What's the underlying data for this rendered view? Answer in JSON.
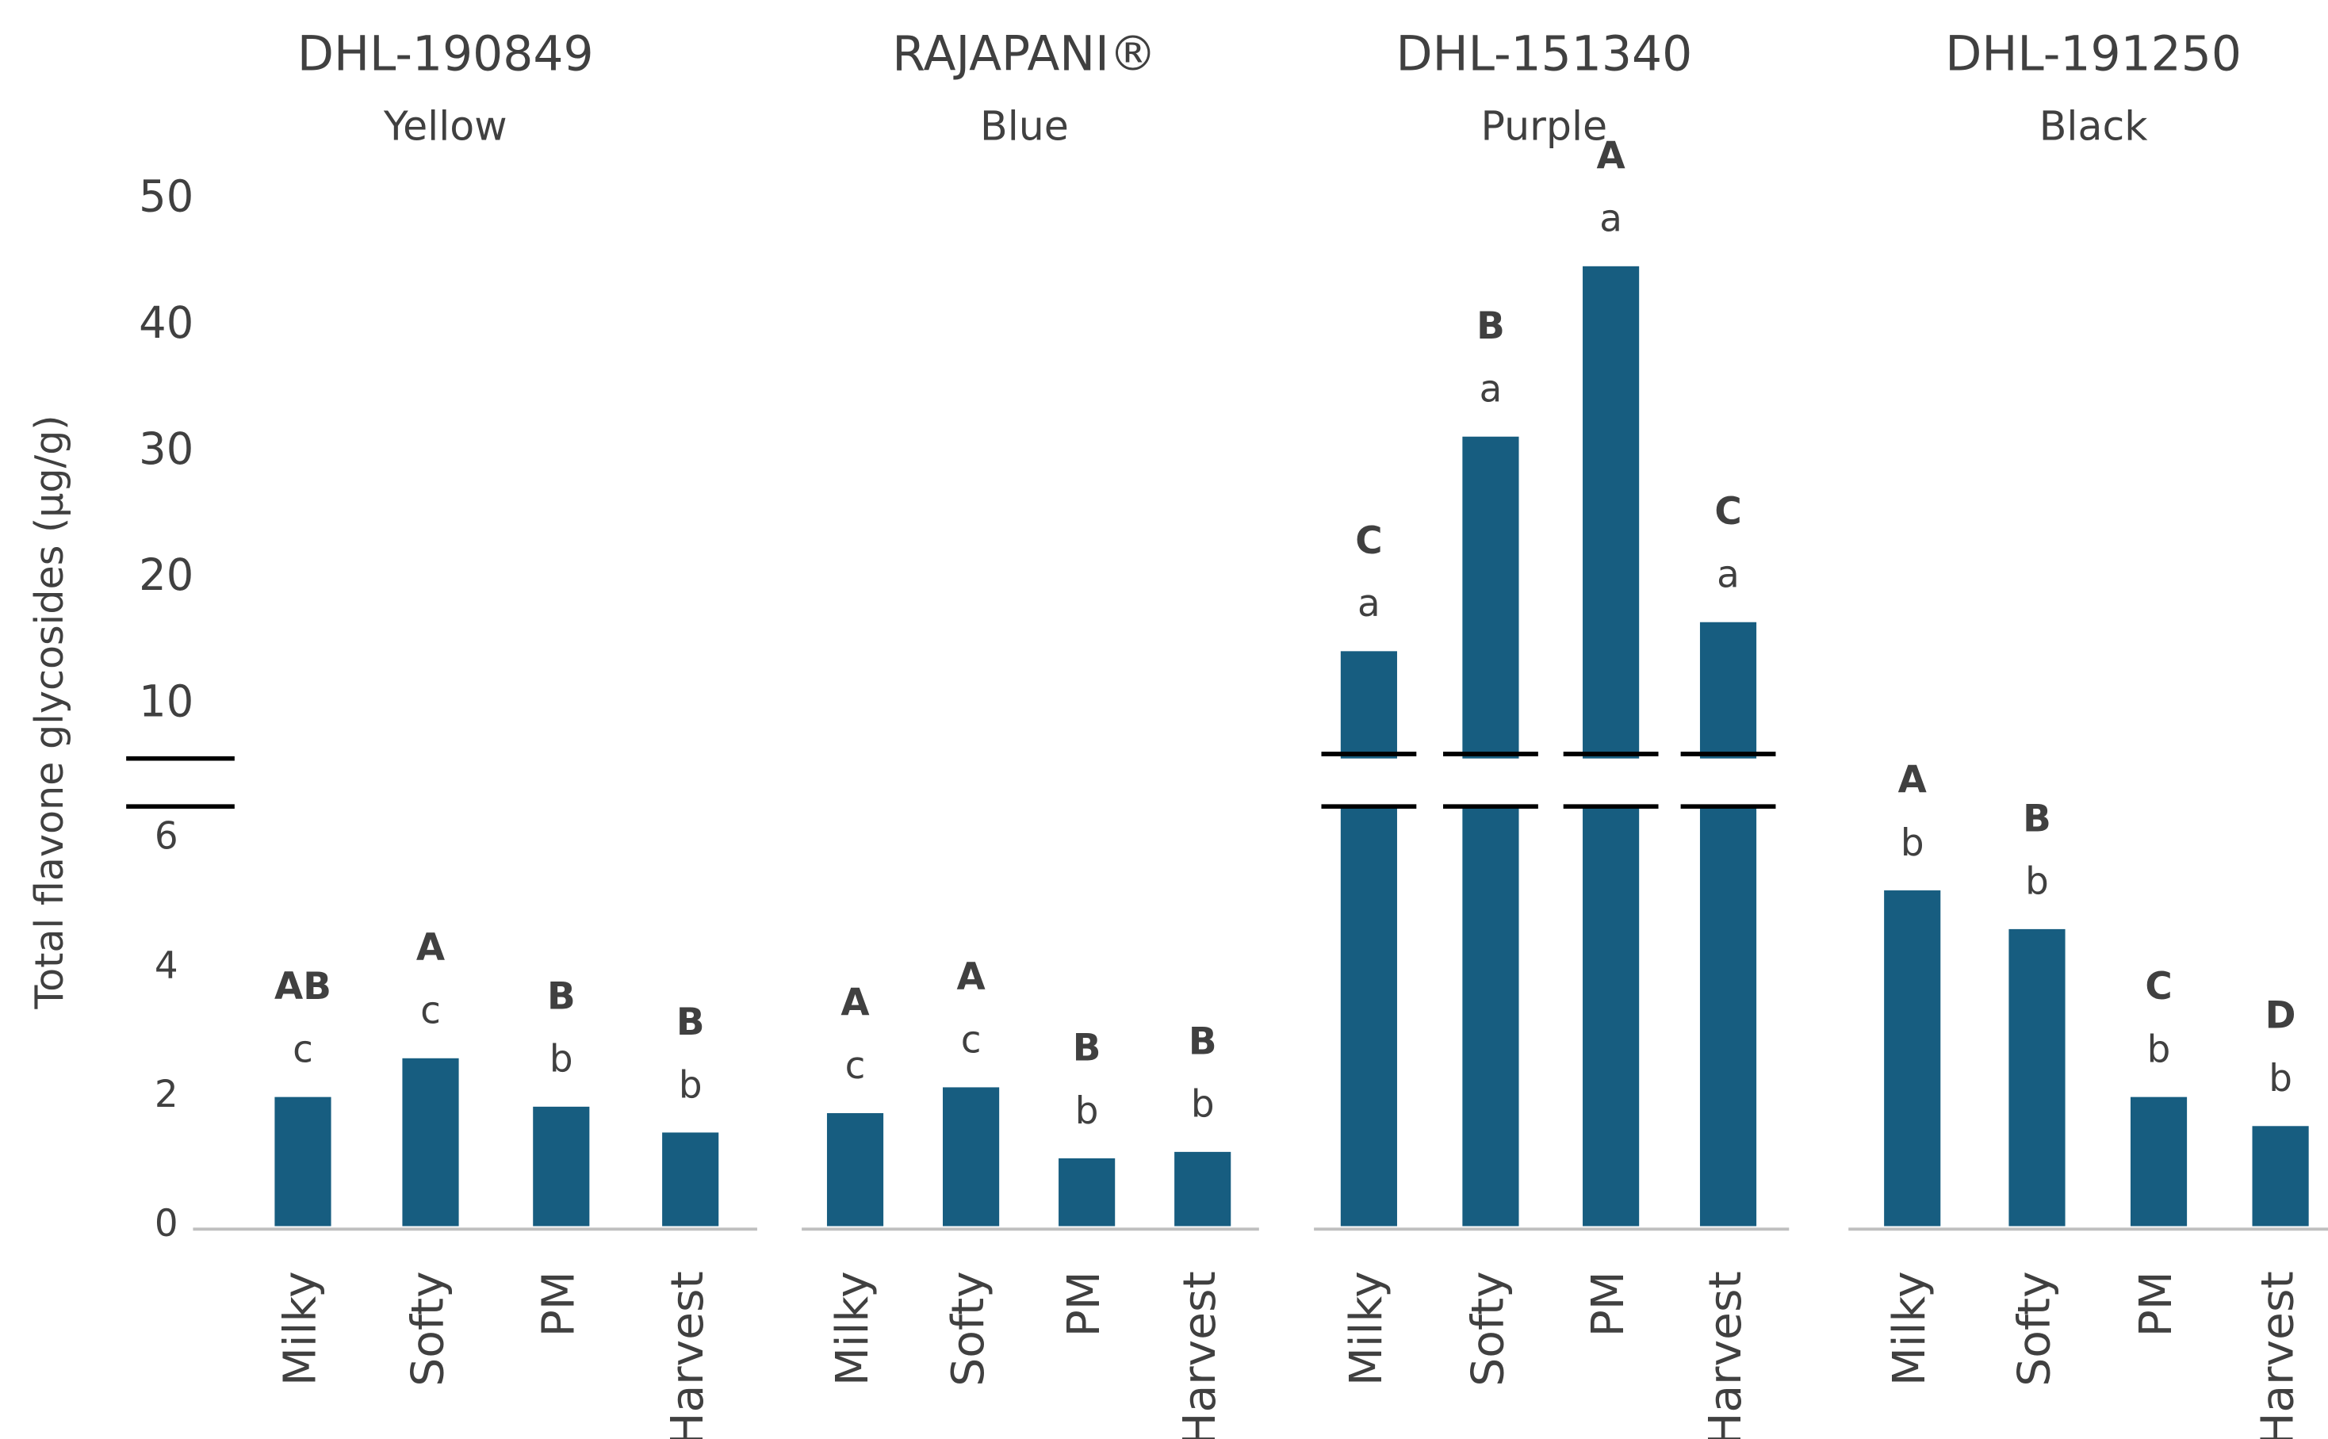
{
  "chart_data": {
    "type": "bar",
    "y_label": "Total flavone glycosides (µg/g)",
    "color": "#175d80",
    "categories": [
      "Milky",
      "Softy",
      "PM",
      "Harvest"
    ],
    "ylim": [
      0,
      6.5
    ],
    "yticks": [
      0,
      2,
      4,
      6
    ],
    "ylim_upper": [
      5.7,
      50
    ],
    "yticks_upper": [
      10,
      20,
      30,
      40,
      50
    ],
    "panels": [
      {
        "title": "DHL-190849",
        "subtitle": "Yellow",
        "values": [
          2.0,
          2.6,
          1.85,
          1.45
        ],
        "upper_letters": [
          "AB",
          "A",
          "B",
          "B"
        ],
        "lower_letters": [
          "c",
          "c",
          "b",
          "b"
        ]
      },
      {
        "title": "RAJAPANI®",
        "subtitle": "Blue",
        "values": [
          1.75,
          2.15,
          1.05,
          1.15
        ],
        "upper_letters": [
          "A",
          "A",
          "B",
          "B"
        ],
        "lower_letters": [
          "c",
          "c",
          "b",
          "b"
        ]
      },
      {
        "title": "DHL-151340",
        "subtitle": "Purple",
        "values": [
          14.2,
          31.2,
          44.7,
          16.5
        ],
        "upper_letters": [
          "C",
          "B",
          "A",
          "C"
        ],
        "lower_letters": [
          "a",
          "a",
          "a",
          "a"
        ]
      },
      {
        "title": "DHL-191250",
        "subtitle": "Black",
        "values": [
          5.2,
          4.6,
          2.0,
          1.55
        ],
        "upper_letters": [
          "A",
          "B",
          "C",
          "D"
        ],
        "lower_letters": [
          "b",
          "b",
          "b",
          "b"
        ]
      }
    ]
  }
}
